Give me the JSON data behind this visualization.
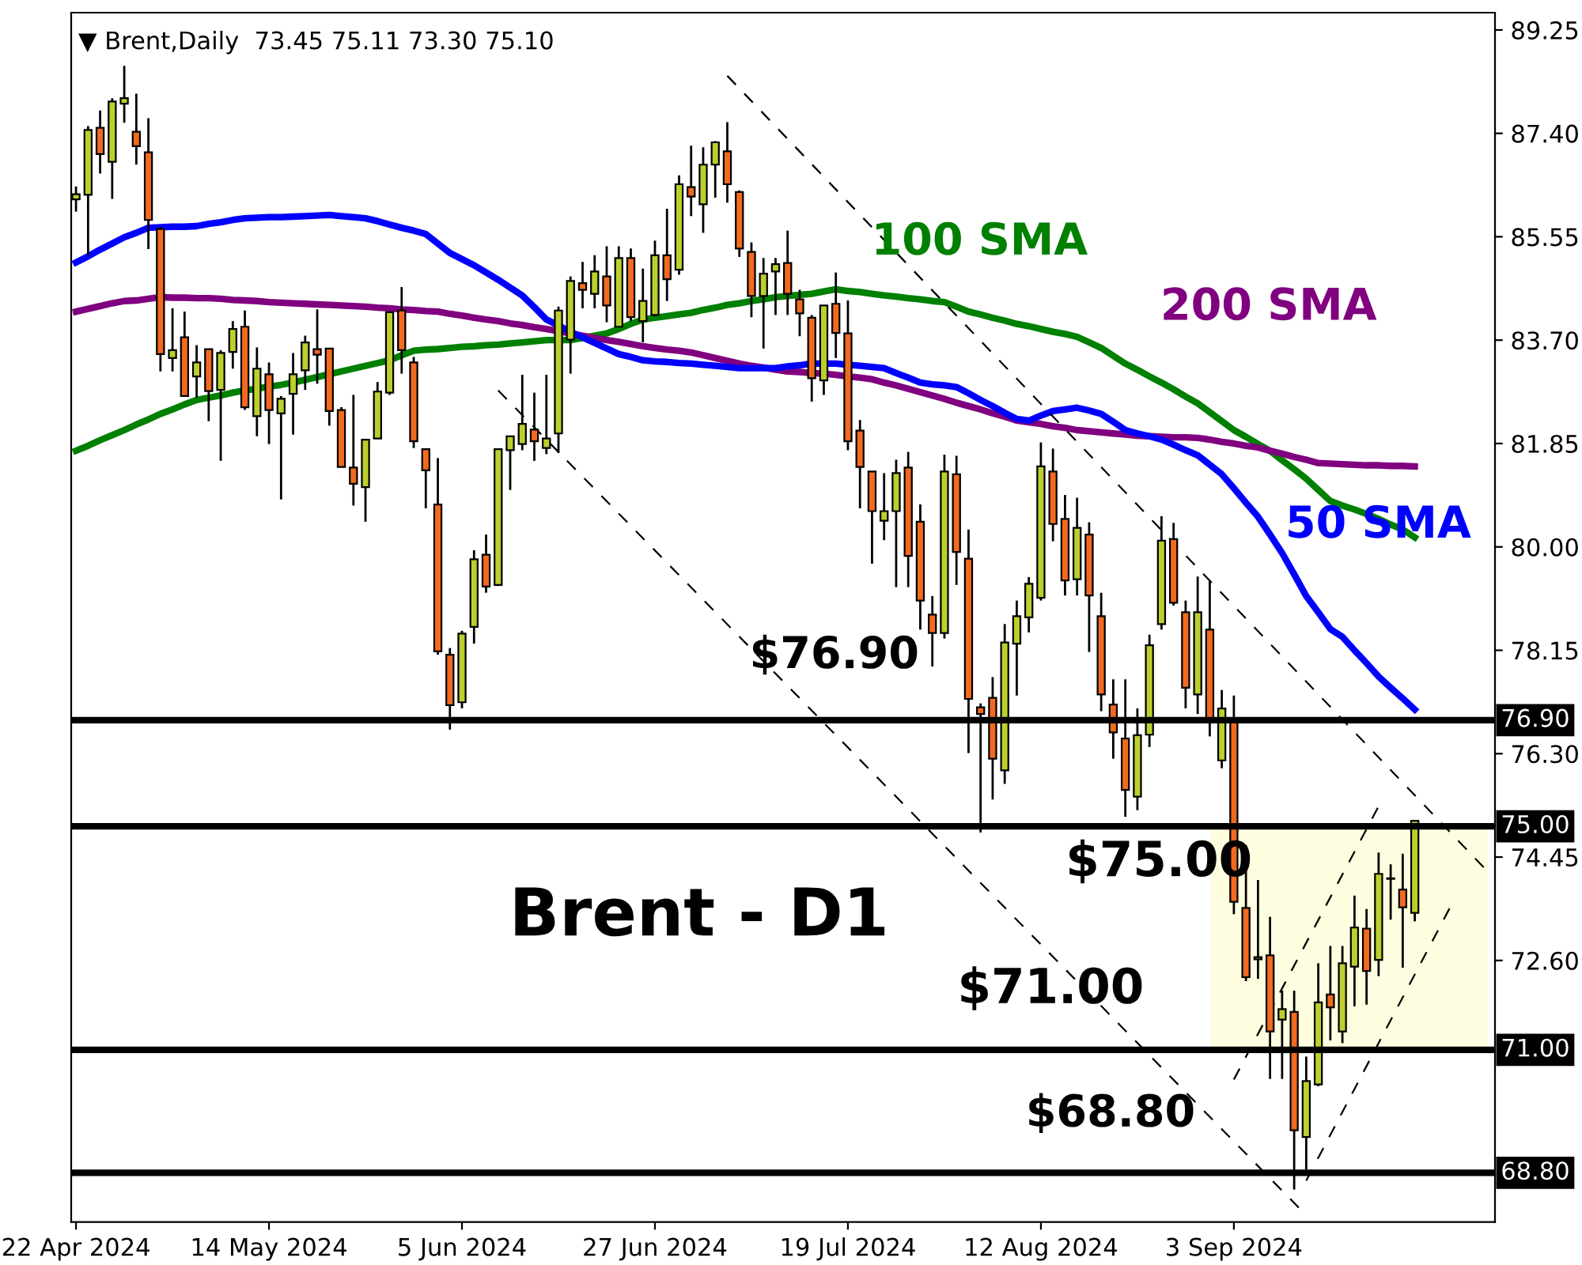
{
  "chart_data": {
    "type": "candlestick",
    "title": "▼ Brent,Daily  73.45 75.11 73.30 75.10",
    "categories": [
      "22 Apr 2024",
      null,
      null,
      null,
      null,
      null,
      null,
      null,
      null,
      null,
      null,
      null,
      null,
      null,
      null,
      null,
      "14 May 2024",
      null,
      null,
      null,
      null,
      null,
      null,
      null,
      null,
      null,
      null,
      null,
      null,
      null,
      null,
      null,
      "5 Jun 2024",
      null,
      null,
      null,
      null,
      null,
      null,
      null,
      null,
      null,
      null,
      null,
      null,
      null,
      null,
      null,
      "27 Jun 2024",
      null,
      null,
      null,
      null,
      null,
      null,
      null,
      null,
      null,
      null,
      null,
      null,
      null,
      null,
      null,
      "19 Jul 2024",
      null,
      null,
      null,
      null,
      null,
      null,
      null,
      null,
      null,
      null,
      null,
      null,
      null,
      null,
      null,
      "12 Aug 2024",
      null,
      null,
      null,
      null,
      null,
      null,
      null,
      null,
      null,
      null,
      null,
      null,
      null,
      null,
      null,
      "3 Sep 2024",
      null,
      null,
      null,
      null,
      null,
      null,
      null,
      null,
      null,
      null,
      null,
      null,
      null,
      null,
      null,
      null,
      null,
      null,
      null,
      null,
      null
    ],
    "ohlc": [
      [
        86.22,
        86.45,
        86.0,
        86.31
      ],
      [
        86.3,
        87.53,
        85.22,
        87.46
      ],
      [
        87.5,
        87.81,
        86.68,
        87.03
      ],
      [
        86.89,
        88.03,
        86.23,
        87.97
      ],
      [
        87.93,
        88.61,
        87.59,
        88.03
      ],
      [
        87.43,
        88.11,
        86.84,
        87.17
      ],
      [
        87.06,
        87.67,
        85.33,
        85.85
      ],
      [
        85.69,
        85.72,
        83.14,
        83.45
      ],
      [
        83.38,
        84.27,
        83.14,
        83.52
      ],
      [
        83.75,
        84.21,
        82.7,
        82.7
      ],
      [
        83.05,
        83.61,
        82.67,
        83.3
      ],
      [
        83.54,
        83.54,
        82.25,
        82.79
      ],
      [
        82.81,
        83.52,
        81.54,
        83.47
      ],
      [
        83.49,
        84.04,
        83.19,
        83.9
      ],
      [
        83.94,
        84.23,
        82.45,
        82.5
      ],
      [
        82.34,
        83.57,
        81.98,
        83.19
      ],
      [
        83.09,
        83.3,
        81.84,
        82.45
      ],
      [
        82.39,
        82.7,
        80.85,
        82.65
      ],
      [
        82.74,
        83.47,
        82.01,
        83.09
      ],
      [
        83.16,
        83.78,
        82.81,
        83.66
      ],
      [
        83.54,
        84.25,
        82.92,
        83.44
      ],
      [
        83.55,
        83.55,
        82.17,
        82.43
      ],
      [
        82.45,
        82.5,
        81.43,
        81.43
      ],
      [
        81.42,
        82.72,
        80.74,
        81.13
      ],
      [
        81.07,
        81.92,
        80.45,
        81.92
      ],
      [
        81.94,
        82.95,
        81.94,
        82.78
      ],
      [
        82.76,
        84.2,
        82.72,
        84.2
      ],
      [
        84.23,
        84.65,
        83.1,
        83.52
      ],
      [
        83.3,
        83.4,
        81.77,
        81.89
      ],
      [
        81.75,
        81.75,
        80.69,
        81.37
      ],
      [
        80.76,
        81.59,
        78.07,
        78.13
      ],
      [
        78.07,
        78.19,
        76.73,
        77.17
      ],
      [
        77.22,
        78.5,
        77.11,
        78.45
      ],
      [
        78.57,
        79.94,
        78.27,
        79.78
      ],
      [
        79.86,
        80.22,
        79.18,
        79.29
      ],
      [
        79.32,
        81.75,
        79.3,
        81.75
      ],
      [
        81.73,
        81.98,
        81.02,
        81.98
      ],
      [
        81.84,
        83.08,
        81.73,
        82.2
      ],
      [
        82.1,
        82.76,
        81.54,
        81.89
      ],
      [
        81.77,
        83.08,
        81.66,
        81.94
      ],
      [
        82.03,
        84.3,
        81.68,
        84.23
      ],
      [
        83.71,
        84.84,
        83.1,
        84.76
      ],
      [
        84.72,
        85.1,
        84.27,
        84.6
      ],
      [
        84.53,
        85.22,
        84.27,
        84.93
      ],
      [
        84.84,
        85.38,
        84.02,
        84.32
      ],
      [
        83.94,
        85.38,
        83.94,
        85.17
      ],
      [
        85.17,
        85.34,
        84.04,
        84.11
      ],
      [
        84.04,
        84.98,
        83.66,
        84.4
      ],
      [
        84.15,
        85.48,
        84.13,
        85.22
      ],
      [
        85.22,
        86.05,
        84.4,
        84.79
      ],
      [
        84.96,
        86.65,
        84.87,
        86.49
      ],
      [
        86.44,
        87.18,
        85.92,
        86.27
      ],
      [
        86.13,
        87.15,
        85.62,
        86.84
      ],
      [
        86.84,
        87.26,
        86.25,
        87.24
      ],
      [
        87.08,
        87.6,
        86.16,
        86.49
      ],
      [
        86.35,
        86.38,
        85.19,
        85.34
      ],
      [
        85.28,
        85.45,
        84.11,
        84.49
      ],
      [
        84.49,
        85.17,
        83.55,
        84.89
      ],
      [
        84.93,
        85.17,
        84.15,
        85.06
      ],
      [
        85.08,
        85.66,
        84.15,
        84.53
      ],
      [
        84.43,
        84.6,
        83.77,
        84.18
      ],
      [
        84.1,
        84.15,
        82.6,
        83.02
      ],
      [
        82.98,
        84.32,
        82.72,
        84.32
      ],
      [
        84.35,
        84.91,
        83.38,
        83.83
      ],
      [
        83.82,
        84.41,
        81.73,
        81.89
      ],
      [
        82.08,
        82.27,
        80.69,
        81.43
      ],
      [
        81.35,
        81.35,
        79.7,
        80.64
      ],
      [
        80.47,
        81.32,
        80.12,
        80.64
      ],
      [
        80.64,
        81.56,
        79.28,
        81.32
      ],
      [
        81.42,
        81.7,
        79.28,
        79.84
      ],
      [
        80.45,
        80.76,
        78.52,
        79.04
      ],
      [
        78.79,
        79.12,
        77.86,
        78.46
      ],
      [
        78.46,
        81.65,
        78.36,
        81.35
      ],
      [
        81.3,
        81.63,
        79.32,
        79.91
      ],
      [
        79.79,
        80.31,
        76.31,
        77.28
      ],
      [
        77.13,
        77.2,
        74.89,
        77.01
      ],
      [
        77.3,
        77.67,
        75.48,
        76.21
      ],
      [
        76.0,
        78.62,
        75.76,
        78.29
      ],
      [
        78.27,
        79.04,
        77.34,
        78.76
      ],
      [
        78.74,
        79.46,
        78.47,
        79.34
      ],
      [
        79.09,
        81.87,
        79.04,
        81.44
      ],
      [
        81.35,
        81.76,
        80.1,
        80.41
      ],
      [
        80.5,
        80.93,
        79.13,
        79.4
      ],
      [
        79.42,
        80.88,
        79.13,
        80.34
      ],
      [
        80.22,
        80.44,
        78.12,
        79.13
      ],
      [
        78.76,
        79.18,
        77.06,
        77.36
      ],
      [
        77.18,
        77.63,
        76.21,
        76.68
      ],
      [
        76.57,
        77.63,
        75.17,
        75.65
      ],
      [
        75.53,
        77.11,
        75.29,
        76.63
      ],
      [
        76.64,
        78.43,
        76.42,
        78.24
      ],
      [
        78.62,
        80.55,
        78.52,
        80.11
      ],
      [
        80.14,
        80.43,
        78.95,
        79.0
      ],
      [
        78.83,
        79.04,
        77.11,
        77.48
      ],
      [
        77.36,
        79.47,
        77.01,
        78.83
      ],
      [
        78.52,
        79.4,
        76.61,
        76.92
      ],
      [
        76.18,
        77.44,
        76.04,
        77.11
      ],
      [
        76.89,
        77.34,
        73.43,
        73.65
      ],
      [
        73.54,
        74.66,
        72.23,
        72.3
      ],
      [
        72.62,
        74.04,
        72.27,
        72.66
      ],
      [
        72.69,
        73.38,
        70.48,
        71.33
      ],
      [
        71.54,
        72.06,
        70.48,
        71.73
      ],
      [
        71.68,
        72.06,
        68.5,
        69.56
      ],
      [
        69.44,
        70.88,
        68.86,
        70.44
      ],
      [
        70.38,
        72.55,
        70.35,
        71.85
      ],
      [
        71.99,
        72.86,
        71.17,
        71.76
      ],
      [
        71.33,
        72.86,
        71.12,
        72.55
      ],
      [
        72.49,
        73.76,
        71.78,
        73.19
      ],
      [
        73.17,
        73.52,
        71.81,
        72.41
      ],
      [
        72.61,
        74.53,
        72.32,
        74.15
      ],
      [
        74.07,
        74.32,
        73.33,
        74.06
      ],
      [
        73.87,
        74.51,
        72.47,
        73.55
      ],
      [
        73.45,
        75.11,
        73.3,
        75.1
      ],
      null,
      null,
      null,
      null,
      null,
      null
    ],
    "colors": [
      "#bccf2c",
      "#bccf2c",
      "#f26a1f",
      "#bccf2c",
      "#bccf2c",
      "#f26a1f",
      "#f26a1f",
      "#f26a1f",
      "#bccf2c",
      "#f26a1f",
      "#bccf2c",
      "#f26a1f",
      "#bccf2c",
      "#bccf2c",
      "#f26a1f",
      "#bccf2c",
      "#f26a1f",
      "#bccf2c",
      "#bccf2c",
      "#bccf2c",
      "#f26a1f",
      "#f26a1f",
      "#f26a1f",
      "#f26a1f",
      "#bccf2c",
      "#bccf2c",
      "#bccf2c",
      "#f26a1f",
      "#f26a1f",
      "#f26a1f",
      "#f26a1f",
      "#f26a1f",
      "#bccf2c",
      "#bccf2c",
      "#f26a1f",
      "#bccf2c",
      "#bccf2c",
      "#bccf2c",
      "#f26a1f",
      "#bccf2c",
      "#bccf2c",
      "#bccf2c",
      "#f26a1f",
      "#bccf2c",
      "#f26a1f",
      "#bccf2c",
      "#f26a1f",
      "#bccf2c",
      "#bccf2c",
      "#f26a1f",
      "#bccf2c",
      "#f26a1f",
      "#bccf2c",
      "#bccf2c",
      "#f26a1f",
      "#f26a1f",
      "#f26a1f",
      "#bccf2c",
      "#bccf2c",
      "#f26a1f",
      "#f26a1f",
      "#f26a1f",
      "#bccf2c",
      "#f26a1f",
      "#f26a1f",
      "#f26a1f",
      "#f26a1f",
      "#bccf2c",
      "#bccf2c",
      "#f26a1f",
      "#f26a1f",
      "#f26a1f",
      "#bccf2c",
      "#f26a1f",
      "#f26a1f",
      "#f26a1f",
      "#f26a1f",
      "#bccf2c",
      "#bccf2c",
      "#bccf2c",
      "#bccf2c",
      "#f26a1f",
      "#f26a1f",
      "#bccf2c",
      "#f26a1f",
      "#f26a1f",
      "#f26a1f",
      "#f26a1f",
      "#bccf2c",
      "#bccf2c",
      "#bccf2c",
      "#f26a1f",
      "#f26a1f",
      "#bccf2c",
      "#f26a1f",
      "#bccf2c",
      "#f26a1f",
      "#f26a1f",
      "#bccf2c",
      "#f26a1f",
      "#bccf2c",
      "#f26a1f",
      "#bccf2c",
      "#bccf2c",
      "#f26a1f",
      "#bccf2c",
      "#bccf2c",
      "#f26a1f",
      "#bccf2c",
      "#f26a1f",
      "#f26a1f",
      "#bccf2c",
      null,
      null,
      null,
      null,
      null,
      null
    ],
    "series": [
      {
        "name": "100 SMA",
        "type": "line",
        "color": "#008000",
        "values": [
          81.72,
          81.81,
          81.91,
          82.0,
          82.09,
          82.19,
          82.28,
          82.38,
          82.46,
          82.55,
          82.63,
          82.67,
          82.71,
          82.76,
          82.8,
          82.83,
          82.87,
          82.9,
          82.94,
          82.99,
          83.04,
          83.09,
          83.14,
          83.19,
          83.24,
          83.29,
          83.34,
          83.43,
          83.51,
          83.53,
          83.54,
          83.56,
          83.58,
          83.59,
          83.61,
          83.62,
          83.64,
          83.66,
          83.68,
          83.7,
          83.7,
          83.7,
          83.74,
          83.78,
          83.82,
          83.9,
          83.99,
          84.07,
          84.1,
          84.13,
          84.16,
          84.19,
          84.24,
          84.28,
          84.33,
          84.36,
          84.4,
          84.43,
          84.47,
          84.49,
          84.51,
          84.53,
          84.57,
          84.61,
          84.58,
          84.56,
          84.53,
          84.5,
          84.48,
          84.45,
          84.43,
          84.4,
          84.38,
          84.3,
          84.21,
          84.16,
          84.1,
          84.05,
          83.99,
          83.95,
          83.9,
          83.85,
          83.81,
          83.76,
          83.66,
          83.56,
          83.42,
          83.28,
          83.17,
          83.05,
          82.94,
          82.82,
          82.69,
          82.57,
          82.41,
          82.25,
          82.09,
          81.97,
          81.84,
          81.72,
          81.55,
          81.39,
          81.22,
          81.02,
          80.82,
          80.74,
          80.67,
          80.59,
          80.5,
          80.4,
          80.31,
          80.17,
          null,
          null,
          null,
          null,
          null,
          null
        ]
      },
      {
        "name": "200 SMA",
        "type": "line",
        "color": "#800080",
        "values": [
          84.21,
          84.26,
          84.31,
          84.36,
          84.4,
          84.41,
          84.44,
          84.47,
          84.46,
          84.46,
          84.45,
          84.45,
          84.44,
          84.42,
          84.41,
          84.4,
          84.38,
          84.37,
          84.36,
          84.35,
          84.34,
          84.33,
          84.32,
          84.31,
          84.3,
          84.28,
          84.27,
          84.25,
          84.24,
          84.22,
          84.21,
          84.17,
          84.14,
          84.1,
          84.07,
          84.04,
          84.0,
          83.97,
          83.93,
          83.9,
          83.86,
          83.82,
          83.78,
          83.74,
          83.7,
          83.67,
          83.63,
          83.59,
          83.56,
          83.53,
          83.51,
          83.48,
          83.43,
          83.38,
          83.33,
          83.28,
          83.24,
          83.21,
          83.17,
          83.14,
          83.13,
          83.11,
          83.1,
          83.08,
          83.05,
          83.03,
          83.0,
          82.94,
          82.89,
          82.83,
          82.77,
          82.71,
          82.65,
          82.58,
          82.52,
          82.46,
          82.39,
          82.33,
          82.26,
          82.23,
          82.2,
          82.16,
          82.13,
          82.09,
          82.07,
          82.05,
          82.03,
          82.01,
          81.99,
          81.98,
          81.97,
          81.96,
          81.96,
          81.95,
          81.92,
          81.88,
          81.85,
          81.81,
          81.78,
          81.72,
          81.67,
          81.61,
          81.56,
          81.5,
          81.49,
          81.48,
          81.47,
          81.46,
          81.46,
          81.45,
          81.45,
          81.44,
          null,
          null,
          null,
          null,
          null,
          null
        ]
      },
      {
        "name": "50 SMA",
        "type": "line",
        "color": "#0000ff",
        "values": [
          85.09,
          85.2,
          85.32,
          85.43,
          85.54,
          85.62,
          85.71,
          85.72,
          85.73,
          85.73,
          85.74,
          85.78,
          85.81,
          85.85,
          85.88,
          85.89,
          85.9,
          85.9,
          85.91,
          85.92,
          85.93,
          85.94,
          85.92,
          85.9,
          85.88,
          85.83,
          85.77,
          85.71,
          85.66,
          85.6,
          85.43,
          85.26,
          85.15,
          85.04,
          84.91,
          84.78,
          84.64,
          84.5,
          84.29,
          84.07,
          83.96,
          83.85,
          83.75,
          83.65,
          83.55,
          83.45,
          83.4,
          83.34,
          83.32,
          83.31,
          83.29,
          83.28,
          83.26,
          83.24,
          83.22,
          83.2,
          83.2,
          83.2,
          83.2,
          83.23,
          83.25,
          83.28,
          83.28,
          83.28,
          83.26,
          83.24,
          83.22,
          83.2,
          83.11,
          83.03,
          82.94,
          82.91,
          82.89,
          82.86,
          82.75,
          82.63,
          82.52,
          82.4,
          82.29,
          82.26,
          82.35,
          82.43,
          82.46,
          82.49,
          82.44,
          82.38,
          82.24,
          82.09,
          82.03,
          81.98,
          81.92,
          81.83,
          81.73,
          81.64,
          81.47,
          81.3,
          81.05,
          80.79,
          80.54,
          80.22,
          79.89,
          79.51,
          79.12,
          78.83,
          78.53,
          78.39,
          78.15,
          77.92,
          77.68,
          77.48,
          77.29,
          77.09,
          null,
          null,
          null,
          null,
          null,
          null
        ]
      },
      {
        "type": "line",
        "color": "#000000",
        "line_style": "dashed",
        "values": [
          null,
          null,
          null,
          null,
          null,
          null,
          null,
          null,
          null,
          null,
          null,
          null,
          null,
          null,
          null,
          null,
          null,
          null,
          null,
          null,
          null,
          null,
          null,
          null,
          null,
          null,
          null,
          null,
          null,
          null,
          null,
          null,
          null,
          null,
          null,
          null,
          null,
          null,
          null,
          null,
          null,
          null,
          null,
          null,
          null,
          null,
          null,
          null,
          null,
          null,
          null,
          null,
          null,
          null,
          88.43,
          null,
          null,
          null,
          null,
          null,
          null,
          null,
          null,
          null,
          null,
          null,
          null,
          null,
          null,
          null,
          null,
          null,
          null,
          null,
          null,
          null,
          null,
          null,
          null,
          null,
          null,
          null,
          null,
          null,
          null,
          null,
          null,
          null,
          null,
          null,
          null,
          null,
          null,
          null,
          null,
          null,
          null,
          null,
          null,
          null,
          null,
          null,
          null,
          null,
          null,
          null,
          null,
          null,
          null,
          null,
          null,
          null,
          null,
          null,
          null,
          null,
          null,
          74.2
        ]
      },
      {
        "type": "line",
        "color": "#000000",
        "line_style": "dashed",
        "values": [
          null,
          null,
          null,
          null,
          null,
          null,
          null,
          null,
          null,
          null,
          null,
          null,
          null,
          null,
          null,
          null,
          null,
          null,
          null,
          null,
          null,
          null,
          null,
          null,
          null,
          null,
          null,
          null,
          null,
          null,
          null,
          null,
          null,
          null,
          null,
          82.8,
          null,
          null,
          null,
          null,
          null,
          null,
          null,
          null,
          null,
          null,
          null,
          null,
          null,
          null,
          null,
          null,
          null,
          null,
          null,
          null,
          null,
          null,
          null,
          null,
          null,
          null,
          null,
          null,
          null,
          null,
          null,
          null,
          null,
          null,
          null,
          null,
          null,
          null,
          null,
          null,
          null,
          null,
          null,
          null,
          null,
          null,
          null,
          null,
          null,
          null,
          null,
          null,
          null,
          null,
          null,
          null,
          null,
          null,
          null,
          null,
          null,
          null,
          null,
          null,
          null,
          null,
          68.04,
          null,
          null,
          null,
          null,
          null,
          null,
          null,
          null,
          null,
          null,
          null,
          null,
          null,
          null,
          null
        ]
      },
      {
        "type": "line",
        "color": "#000000",
        "line_style": "dashed",
        "values": [
          null,
          null,
          null,
          null,
          null,
          null,
          null,
          null,
          null,
          null,
          null,
          null,
          null,
          null,
          null,
          null,
          null,
          null,
          null,
          null,
          null,
          null,
          null,
          null,
          null,
          null,
          null,
          null,
          null,
          null,
          null,
          null,
          null,
          null,
          null,
          null,
          null,
          null,
          null,
          null,
          null,
          null,
          null,
          null,
          null,
          null,
          null,
          null,
          null,
          null,
          null,
          null,
          null,
          null,
          null,
          null,
          null,
          null,
          null,
          null,
          null,
          null,
          null,
          null,
          null,
          null,
          null,
          null,
          null,
          null,
          null,
          null,
          null,
          null,
          null,
          null,
          null,
          null,
          null,
          null,
          null,
          null,
          null,
          null,
          null,
          null,
          null,
          null,
          null,
          null,
          null,
          null,
          null,
          null,
          null,
          null,
          70.47,
          null,
          null,
          null,
          null,
          null,
          null,
          null,
          null,
          null,
          null,
          null,
          75.36,
          null,
          null,
          null,
          null,
          null,
          null,
          null,
          null,
          null
        ]
      },
      {
        "type": "line",
        "color": "#000000",
        "line_style": "dashed",
        "values": [
          null,
          null,
          null,
          null,
          null,
          null,
          null,
          null,
          null,
          null,
          null,
          null,
          null,
          null,
          null,
          null,
          null,
          null,
          null,
          null,
          null,
          null,
          null,
          null,
          null,
          null,
          null,
          null,
          null,
          null,
          null,
          null,
          null,
          null,
          null,
          null,
          null,
          null,
          null,
          null,
          null,
          null,
          null,
          null,
          null,
          null,
          null,
          null,
          null,
          null,
          null,
          null,
          null,
          null,
          null,
          null,
          null,
          null,
          null,
          null,
          null,
          null,
          null,
          null,
          null,
          null,
          null,
          null,
          null,
          null,
          null,
          null,
          null,
          null,
          null,
          null,
          null,
          null,
          null,
          null,
          null,
          null,
          null,
          null,
          null,
          null,
          null,
          null,
          null,
          null,
          null,
          null,
          null,
          null,
          null,
          null,
          null,
          null,
          null,
          null,
          null,
          null,
          68.66,
          null,
          null,
          null,
          null,
          null,
          null,
          null,
          null,
          null,
          null,
          null,
          73.58,
          null,
          null,
          null
        ]
      }
    ],
    "ylim": [
      67.92,
      89.56
    ],
    "yticks": [
      {
        "value": 89.25,
        "label": "89.25"
      },
      {
        "value": 87.4,
        "label": "87.40"
      },
      {
        "value": 85.55,
        "label": "85.55"
      },
      {
        "value": 83.7,
        "label": "83.70"
      },
      {
        "value": 81.85,
        "label": "81.85"
      },
      {
        "value": 80.0,
        "label": "80.00"
      },
      {
        "value": 78.15,
        "label": "78.15"
      },
      {
        "value": 76.3,
        "label": "76.30"
      },
      {
        "value": 74.45,
        "label": "74.45"
      },
      {
        "value": 72.6,
        "label": "72.60"
      }
    ],
    "ref_lines": [
      {
        "axis": "y",
        "value": 76.9,
        "label": "76.90",
        "color": "#000000"
      },
      {
        "axis": "y",
        "value": 75.0,
        "label": "75.00",
        "color": "#000000"
      },
      {
        "axis": "y",
        "value": 71.0,
        "label": "71.00",
        "color": "#000000"
      },
      {
        "axis": "y",
        "value": 68.8,
        "label": "68.80",
        "color": "#000000"
      }
    ],
    "bands": [
      {
        "axis": "y",
        "from": 71.0,
        "to": 75.0,
        "color": "#fffde0"
      }
    ],
    "annotations": [
      "$76.90",
      "$75.00",
      "Brent - D1",
      "$71.00",
      "$68.80"
    ],
    "grid": false,
    "legend": false
  }
}
